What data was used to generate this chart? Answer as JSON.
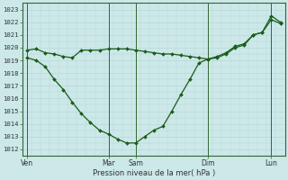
{
  "background_color": "#cce8e8",
  "grid_minor_color": "#b8d8d8",
  "grid_major_color": "#336633",
  "line_color": "#1a5c1a",
  "marker_color": "#1a5c1a",
  "ylabel_ticks": [
    1012,
    1013,
    1014,
    1015,
    1016,
    1017,
    1018,
    1019,
    1020,
    1021,
    1022,
    1023
  ],
  "ylim": [
    1011.5,
    1023.5
  ],
  "xlabel": "Pression niveau de la mer( hPa )",
  "day_labels": [
    "Ven",
    "Mar",
    "Sam",
    "Dim",
    "Lun"
  ],
  "day_tick_positions": [
    0,
    18,
    24,
    40,
    54
  ],
  "xlim": [
    -1,
    57
  ],
  "series1_x": [
    0,
    2,
    4,
    6,
    8,
    10,
    12,
    14,
    16,
    18,
    20,
    22,
    24,
    26,
    28,
    30,
    32,
    34,
    36,
    38,
    40,
    42,
    44,
    46,
    48,
    50,
    52,
    54,
    56
  ],
  "series1_y": [
    1019.8,
    1019.9,
    1019.6,
    1019.5,
    1019.3,
    1019.2,
    1019.8,
    1019.8,
    1019.8,
    1019.9,
    1019.9,
    1019.9,
    1019.8,
    1019.7,
    1019.6,
    1019.5,
    1019.5,
    1019.4,
    1019.3,
    1019.2,
    1019.1,
    1019.3,
    1019.6,
    1020.1,
    1020.3,
    1021.0,
    1021.2,
    1022.2,
    1021.9
  ],
  "series2_x": [
    0,
    2,
    4,
    6,
    8,
    10,
    12,
    14,
    16,
    18,
    20,
    22,
    24,
    26,
    28,
    30,
    32,
    34,
    36,
    38,
    40,
    42,
    44,
    46,
    48,
    50,
    52,
    54,
    56
  ],
  "series2_y": [
    1019.2,
    1019.0,
    1018.5,
    1017.5,
    1016.7,
    1015.7,
    1014.8,
    1014.1,
    1013.5,
    1013.2,
    1012.8,
    1012.5,
    1012.5,
    1013.0,
    1013.5,
    1013.8,
    1015.0,
    1016.3,
    1017.5,
    1018.8,
    1019.1,
    1019.2,
    1019.5,
    1020.0,
    1020.2,
    1021.0,
    1021.2,
    1022.5,
    1022.0
  ]
}
